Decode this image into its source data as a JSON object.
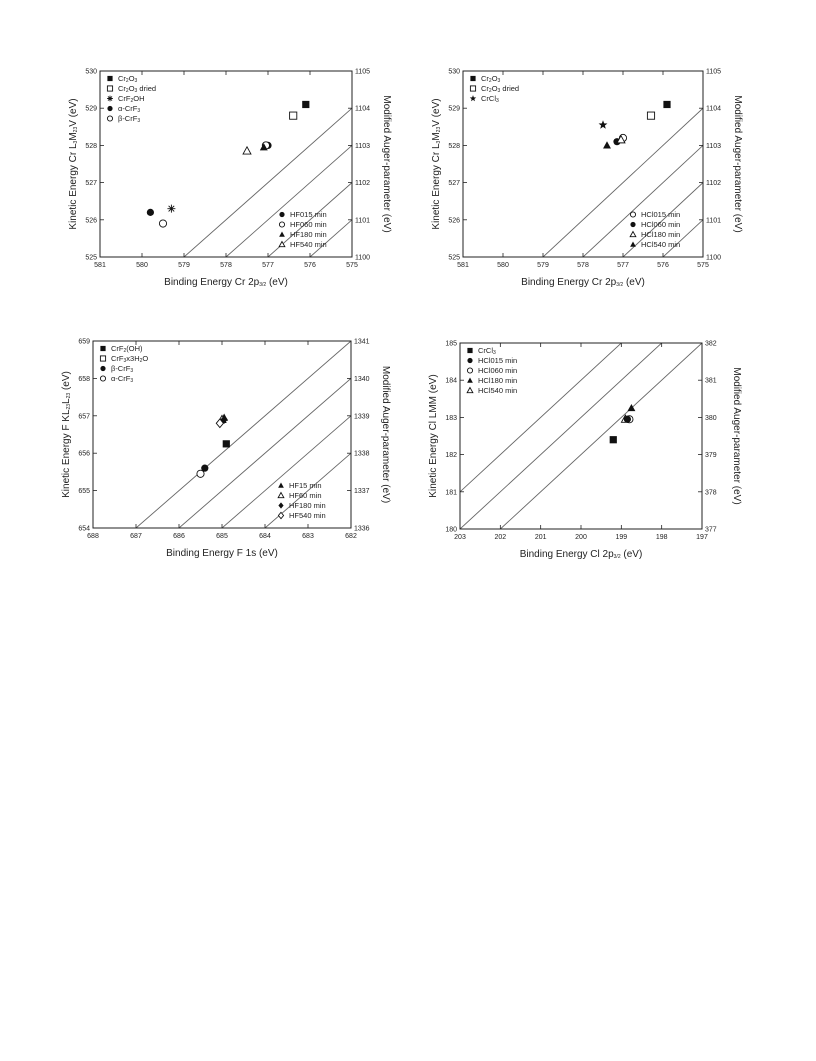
{
  "chart_data": [
    {
      "type": "scatter",
      "xlabel": "Binding Energy Cr 2p3/2 (eV)",
      "xlabel_parts": [
        [
          "Binding Energy Cr 2p",
          ""
        ],
        [
          "3/2",
          "sub"
        ],
        [
          " (eV)",
          ""
        ]
      ],
      "ylabel": "Kinetic Energy Cr L3M23V (eV)",
      "ylabel_parts": [
        [
          "Kinetic Energy Cr L",
          ""
        ],
        [
          "3",
          "sub"
        ],
        [
          "M",
          ""
        ],
        [
          "23",
          "sub"
        ],
        [
          "V (eV)",
          ""
        ]
      ],
      "y2label": "Modified Auger-parameter (eV)",
      "xlim": [
        581,
        575
      ],
      "ylim": [
        525,
        530
      ],
      "y2lim": [
        1100,
        1105
      ],
      "xticks": [
        581,
        580,
        579,
        578,
        577,
        576,
        575
      ],
      "yticks": [
        525,
        526,
        527,
        528,
        529,
        530
      ],
      "y2ticks": [
        1100,
        1101,
        1102,
        1103,
        1104,
        1105
      ],
      "diagonal_lines": [
        1101,
        1102,
        1103,
        1104
      ],
      "diagonal_light": false,
      "legend_groups": [
        {
          "position": "top-left",
          "entries": [
            {
              "marker": "filled-square",
              "parts": [
                [
                  "Cr",
                  ""
                ],
                [
                  "2",
                  "sub"
                ],
                [
                  "O",
                  ""
                ],
                [
                  "3",
                  "sub"
                ]
              ]
            },
            {
              "marker": "open-square",
              "parts": [
                [
                  "Cr",
                  ""
                ],
                [
                  "2",
                  "sub"
                ],
                [
                  "O",
                  ""
                ],
                [
                  "3",
                  "sub"
                ],
                [
                  " dried",
                  ""
                ]
              ]
            },
            {
              "marker": "asterisk",
              "parts": [
                [
                  "CrF",
                  ""
                ],
                [
                  "2",
                  "sub"
                ],
                [
                  "OH",
                  ""
                ]
              ]
            },
            {
              "marker": "filled-circle",
              "parts": [
                [
                  "α-CrF",
                  ""
                ],
                [
                  "3",
                  "sub"
                ]
              ]
            },
            {
              "marker": "open-circle",
              "parts": [
                [
                  "β-CrF",
                  ""
                ],
                [
                  "3",
                  "sub"
                ]
              ]
            }
          ]
        },
        {
          "position": "bottom-right",
          "entries": [
            {
              "marker": "filled-circle",
              "parts": [
                [
                  "HF015 min",
                  ""
                ]
              ]
            },
            {
              "marker": "open-circle",
              "parts": [
                [
                  "HF060 min",
                  ""
                ]
              ]
            },
            {
              "marker": "filled-triangle",
              "parts": [
                [
                  "HF180 min",
                  ""
                ]
              ]
            },
            {
              "marker": "open-triangle",
              "parts": [
                [
                  "HF540 min",
                  ""
                ]
              ]
            }
          ]
        }
      ],
      "points": [
        {
          "marker": "filled-square",
          "x": 576.1,
          "y": 529.1
        },
        {
          "marker": "open-square",
          "x": 576.4,
          "y": 528.8
        },
        {
          "marker": "asterisk",
          "x": 579.3,
          "y": 526.3
        },
        {
          "marker": "filled-circle",
          "x": 579.8,
          "y": 526.2
        },
        {
          "marker": "open-circle",
          "x": 579.5,
          "y": 525.9
        },
        {
          "marker": "filled-circle",
          "x": 577.0,
          "y": 528.0
        },
        {
          "marker": "open-circle",
          "x": 577.05,
          "y": 528.0
        },
        {
          "marker": "filled-triangle",
          "x": 577.1,
          "y": 527.95
        },
        {
          "marker": "open-triangle",
          "x": 577.5,
          "y": 527.85
        }
      ]
    },
    {
      "type": "scatter",
      "xlabel": "Binding Energy Cr 2p3/2 (eV)",
      "xlabel_parts": [
        [
          "Binding Energy Cr 2p",
          ""
        ],
        [
          "3/2",
          "sub"
        ],
        [
          " (eV)",
          ""
        ]
      ],
      "ylabel": "Kinetic Energy Cr L3M23V (eV)",
      "ylabel_parts": [
        [
          "Kinetic Energy Cr L",
          ""
        ],
        [
          "3",
          "sub"
        ],
        [
          "M",
          ""
        ],
        [
          "23",
          "sub"
        ],
        [
          "V (eV)",
          ""
        ]
      ],
      "y2label": "Modified Auger-parameter (eV)",
      "xlim": [
        581,
        575
      ],
      "ylim": [
        525,
        530
      ],
      "y2lim": [
        1100,
        1105
      ],
      "xticks": [
        581,
        580,
        579,
        578,
        577,
        576,
        575
      ],
      "yticks": [
        525,
        526,
        527,
        528,
        529,
        530
      ],
      "y2ticks": [
        1100,
        1101,
        1102,
        1103,
        1104,
        1105
      ],
      "diagonal_lines": [
        1101,
        1102,
        1103,
        1104
      ],
      "diagonal_light": true,
      "legend_groups": [
        {
          "position": "top-left",
          "entries": [
            {
              "marker": "filled-square",
              "parts": [
                [
                  "Cr",
                  ""
                ],
                [
                  "2",
                  "sub"
                ],
                [
                  "O",
                  ""
                ],
                [
                  "3",
                  "sub"
                ]
              ]
            },
            {
              "marker": "open-square",
              "parts": [
                [
                  "Cr",
                  ""
                ],
                [
                  "2",
                  "sub"
                ],
                [
                  "O",
                  ""
                ],
                [
                  "3",
                  "sub"
                ],
                [
                  " dried",
                  ""
                ]
              ]
            },
            {
              "marker": "star",
              "parts": [
                [
                  "CrCl",
                  ""
                ],
                [
                  "3",
                  "sub"
                ]
              ]
            }
          ]
        },
        {
          "position": "bottom-right",
          "entries": [
            {
              "marker": "open-circle",
              "parts": [
                [
                  "HCl015 min",
                  ""
                ]
              ]
            },
            {
              "marker": "filled-circle",
              "parts": [
                [
                  "HCl060 min",
                  ""
                ]
              ]
            },
            {
              "marker": "open-triangle",
              "parts": [
                [
                  "HCl180 min",
                  ""
                ]
              ]
            },
            {
              "marker": "filled-triangle",
              "parts": [
                [
                  "HCl540 min",
                  ""
                ]
              ]
            }
          ]
        }
      ],
      "points": [
        {
          "marker": "filled-square",
          "x": 575.9,
          "y": 529.1
        },
        {
          "marker": "open-square",
          "x": 576.3,
          "y": 528.8
        },
        {
          "marker": "star",
          "x": 577.5,
          "y": 528.55
        },
        {
          "marker": "open-circle",
          "x": 577.0,
          "y": 528.2
        },
        {
          "marker": "filled-circle",
          "x": 577.15,
          "y": 528.1
        },
        {
          "marker": "open-triangle",
          "x": 577.05,
          "y": 528.15
        },
        {
          "marker": "filled-triangle",
          "x": 577.4,
          "y": 528.0
        }
      ]
    },
    {
      "type": "scatter",
      "xlabel": "Binding Energy F 1s (eV)",
      "xlabel_parts": [
        [
          "Binding Energy F 1s (eV)",
          ""
        ]
      ],
      "ylabel": "Kinetic Energy F KL23L23 (eV)",
      "ylabel_parts": [
        [
          "Kinetic Energy F KL",
          ""
        ],
        [
          "23",
          "sub"
        ],
        [
          "L",
          ""
        ],
        [
          "23",
          "sub"
        ],
        [
          " (eV)",
          ""
        ]
      ],
      "y2label": "Modified Auger-parameter (eV)",
      "xlim": [
        688,
        682
      ],
      "ylim": [
        654,
        659
      ],
      "y2lim": [
        1336,
        1341
      ],
      "xticks": [
        688,
        687,
        686,
        685,
        684,
        683,
        682
      ],
      "yticks": [
        654,
        655,
        656,
        657,
        658,
        659
      ],
      "y2ticks": [
        1336,
        1337,
        1338,
        1339,
        1340,
        1341
      ],
      "diagonal_lines": [
        1338,
        1339,
        1340,
        1341
      ],
      "diagonal_light": false,
      "legend_groups": [
        {
          "position": "top-left",
          "entries": [
            {
              "marker": "filled-square",
              "parts": [
                [
                  "CrF",
                  ""
                ],
                [
                  "2",
                  "sub"
                ],
                [
                  "(OH)",
                  ""
                ]
              ]
            },
            {
              "marker": "open-square",
              "parts": [
                [
                  "CrF",
                  ""
                ],
                [
                  "3",
                  "sub"
                ],
                [
                  "x3H",
                  ""
                ],
                [
                  "2",
                  "sub"
                ],
                [
                  "O",
                  ""
                ]
              ]
            },
            {
              "marker": "filled-circle",
              "parts": [
                [
                  "β-CrF",
                  ""
                ],
                [
                  "3",
                  "sub"
                ]
              ]
            },
            {
              "marker": "open-circle",
              "parts": [
                [
                  "α-CrF",
                  ""
                ],
                [
                  "3",
                  "sub"
                ]
              ]
            }
          ]
        },
        {
          "position": "bottom-right",
          "entries": [
            {
              "marker": "filled-triangle",
              "parts": [
                [
                  "HF15 min",
                  ""
                ]
              ]
            },
            {
              "marker": "open-triangle",
              "parts": [
                [
                  "HF60 min",
                  ""
                ]
              ]
            },
            {
              "marker": "filled-diamond",
              "parts": [
                [
                  "HF180 min",
                  ""
                ]
              ]
            },
            {
              "marker": "open-diamond",
              "parts": [
                [
                  "HF540 min",
                  ""
                ]
              ]
            }
          ]
        }
      ],
      "points": [
        {
          "marker": "filled-square",
          "x": 684.9,
          "y": 656.25
        },
        {
          "marker": "filled-circle",
          "x": 685.4,
          "y": 655.6
        },
        {
          "marker": "open-circle",
          "x": 685.5,
          "y": 655.45
        },
        {
          "marker": "filled-triangle",
          "x": 684.95,
          "y": 656.95
        },
        {
          "marker": "open-triangle",
          "x": 685.0,
          "y": 656.9
        },
        {
          "marker": "filled-diamond",
          "x": 684.95,
          "y": 656.9
        },
        {
          "marker": "open-diamond",
          "x": 685.05,
          "y": 656.8
        }
      ]
    },
    {
      "type": "scatter",
      "xlabel": "Binding Energy Cl 2p3/2 (eV)",
      "xlabel_parts": [
        [
          "Binding Energy Cl 2p",
          ""
        ],
        [
          "3/2",
          "sub"
        ],
        [
          " (eV)",
          ""
        ]
      ],
      "ylabel": "Kinetic Energy Cl LMM (eV)",
      "ylabel_parts": [
        [
          "Kinetic Energy Cl LMM (eV)",
          ""
        ]
      ],
      "y2label": "Modified Auger-parameter (eV)",
      "xlim": [
        203,
        197
      ],
      "ylim": [
        180,
        185
      ],
      "y2lim": [
        377,
        382
      ],
      "xticks": [
        203,
        202,
        201,
        200,
        199,
        198,
        197
      ],
      "yticks": [
        180,
        181,
        182,
        183,
        184,
        185
      ],
      "y2ticks": [
        377,
        378,
        379,
        380,
        381,
        382
      ],
      "diagonal_lines": [
        382,
        383,
        384
      ],
      "diagonal_light": false,
      "legend_groups": [
        {
          "position": "top-left",
          "entries": [
            {
              "marker": "filled-square",
              "parts": [
                [
                  "CrCl",
                  ""
                ],
                [
                  "3",
                  "sub"
                ]
              ]
            },
            {
              "marker": "filled-circle",
              "parts": [
                [
                  "HCl015 min",
                  ""
                ]
              ]
            },
            {
              "marker": "open-circle",
              "parts": [
                [
                  "HCl060 min",
                  ""
                ]
              ]
            },
            {
              "marker": "filled-triangle",
              "parts": [
                [
                  "HCl180 min",
                  ""
                ]
              ]
            },
            {
              "marker": "open-triangle",
              "parts": [
                [
                  "HCl540 min",
                  ""
                ]
              ]
            }
          ]
        }
      ],
      "points": [
        {
          "marker": "filled-square",
          "x": 199.2,
          "y": 182.4
        },
        {
          "marker": "filled-triangle",
          "x": 198.75,
          "y": 183.25
        },
        {
          "marker": "open-triangle",
          "x": 198.9,
          "y": 182.95
        },
        {
          "marker": "open-circle",
          "x": 198.8,
          "y": 182.95
        },
        {
          "marker": "filled-circle",
          "x": 198.85,
          "y": 182.95
        }
      ]
    }
  ]
}
